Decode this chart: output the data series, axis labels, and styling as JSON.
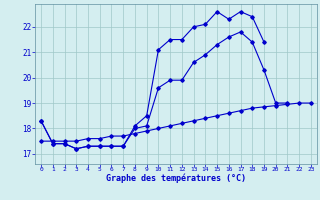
{
  "xlabel": "Graphe des températures (°C)",
  "background_color": "#d4eef0",
  "grid_color": "#a0c8c8",
  "line_color": "#0000cc",
  "hours": [
    0,
    1,
    2,
    3,
    4,
    5,
    6,
    7,
    8,
    9,
    10,
    11,
    12,
    13,
    14,
    15,
    16,
    17,
    18,
    19,
    20,
    21,
    22,
    23
  ],
  "line1": [
    18.3,
    17.4,
    17.4,
    17.2,
    17.3,
    17.3,
    17.3,
    17.3,
    18.0,
    18.1,
    19.6,
    19.9,
    19.9,
    20.6,
    20.9,
    21.3,
    21.6,
    21.8,
    21.4,
    20.3,
    19.0,
    19.0,
    null,
    null
  ],
  "line2": [
    18.3,
    17.4,
    17.4,
    17.2,
    17.3,
    17.3,
    17.3,
    17.3,
    18.1,
    18.5,
    21.1,
    21.5,
    21.5,
    22.0,
    22.1,
    22.6,
    22.3,
    22.6,
    22.4,
    21.4,
    null,
    null,
    null,
    null
  ],
  "line3": [
    17.5,
    17.5,
    17.5,
    17.5,
    17.6,
    17.6,
    17.7,
    17.7,
    17.8,
    17.9,
    18.0,
    18.1,
    18.2,
    18.3,
    18.4,
    18.5,
    18.6,
    18.7,
    18.8,
    18.85,
    18.9,
    18.95,
    19.0,
    19.0
  ],
  "ylim": [
    16.6,
    22.9
  ],
  "yticks": [
    17,
    18,
    19,
    20,
    21,
    22
  ],
  "xticks": [
    0,
    1,
    2,
    3,
    4,
    5,
    6,
    7,
    8,
    9,
    10,
    11,
    12,
    13,
    14,
    15,
    16,
    17,
    18,
    19,
    20,
    21,
    22,
    23
  ]
}
